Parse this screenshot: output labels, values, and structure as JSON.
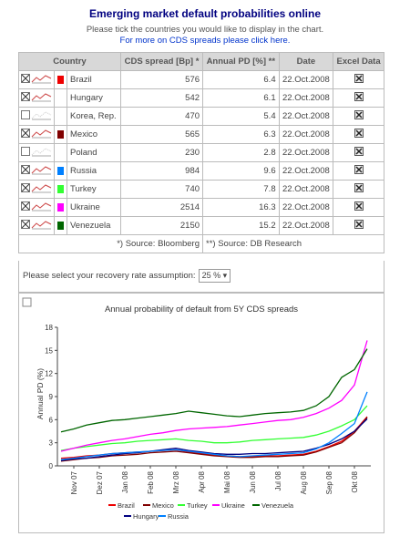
{
  "header": {
    "title": "Emerging market default probabilities online",
    "subtitle": "Please tick the countries you would like to display in the chart.",
    "link": "For more on CDS spreads please click here."
  },
  "table": {
    "columns": [
      "Country",
      "CDS spread [Bp] *",
      "Annual PD [%] **",
      "Date",
      "Excel Data"
    ],
    "rows": [
      {
        "country": "Brazil",
        "checked": true,
        "color": "#ee0000",
        "cds": 576,
        "pd": 6.4,
        "date": "22.Oct.2008"
      },
      {
        "country": "Hungary",
        "checked": true,
        "color": null,
        "cds": 542,
        "pd": 6.1,
        "date": "22.Oct.2008"
      },
      {
        "country": "Korea, Rep.",
        "checked": false,
        "color": null,
        "cds": 470,
        "pd": 5.4,
        "date": "22.Oct.2008"
      },
      {
        "country": "Mexico",
        "checked": true,
        "color": "#800000",
        "cds": 565,
        "pd": 6.3,
        "date": "22.Oct.2008"
      },
      {
        "country": "Poland",
        "checked": false,
        "color": null,
        "cds": 230,
        "pd": 2.8,
        "date": "22.Oct.2008"
      },
      {
        "country": "Russia",
        "checked": true,
        "color": "#0080ff",
        "cds": 984,
        "pd": 9.6,
        "date": "22.Oct.2008"
      },
      {
        "country": "Turkey",
        "checked": true,
        "color": "#33ff33",
        "cds": 740,
        "pd": 7.8,
        "date": "22.Oct.2008"
      },
      {
        "country": "Ukraine",
        "checked": true,
        "color": "#ff00ff",
        "cds": 2514,
        "pd": 16.3,
        "date": "22.Oct.2008"
      },
      {
        "country": "Venezuela",
        "checked": true,
        "color": "#006600",
        "cds": 2150,
        "pd": 15.2,
        "date": "22.Oct.2008"
      }
    ],
    "footnotes": [
      "*) Source: Bloomberg",
      "**) Source: DB Research"
    ]
  },
  "recovery": {
    "label": "Please select your recovery rate assumption:",
    "selected": "25 %"
  },
  "chart_data": {
    "type": "line",
    "title": "Annual probability of default from 5Y CDS spreads",
    "y_label": "Annual PD (%)",
    "categories": [
      null,
      "Nov 07",
      null,
      "Dez 07",
      null,
      "Jan 08",
      null,
      "Feb 08",
      null,
      "Mrz 08",
      null,
      "Apr 08",
      null,
      "Mai 08",
      null,
      "Jun 08",
      null,
      "Jul 08",
      null,
      "Aug 08",
      null,
      "Sep 08",
      null,
      "Okt 08",
      null
    ],
    "ylim": [
      0,
      18
    ],
    "yticks": [
      0,
      3,
      6,
      9,
      12,
      15,
      18
    ],
    "series": [
      {
        "name": "Brazil",
        "color": "#ee0000",
        "values": [
          1.0,
          1.1,
          1.3,
          1.4,
          1.6,
          1.7,
          1.8,
          1.9,
          2.0,
          2.1,
          1.8,
          1.6,
          1.4,
          1.3,
          1.2,
          1.2,
          1.3,
          1.3,
          1.4,
          1.5,
          1.9,
          2.5,
          3.2,
          4.5,
          6.4
        ]
      },
      {
        "name": "Mexico",
        "color": "#800000",
        "values": [
          0.6,
          0.8,
          1.0,
          1.1,
          1.3,
          1.4,
          1.5,
          1.7,
          1.8,
          1.9,
          1.7,
          1.5,
          1.3,
          1.2,
          1.1,
          1.1,
          1.2,
          1.2,
          1.3,
          1.4,
          1.8,
          2.4,
          3.0,
          4.3,
          6.3
        ]
      },
      {
        "name": "Turkey",
        "color": "#33ff33",
        "values": [
          2.0,
          2.3,
          2.5,
          2.7,
          2.9,
          3.0,
          3.2,
          3.3,
          3.4,
          3.5,
          3.3,
          3.2,
          3.0,
          3.0,
          3.1,
          3.3,
          3.4,
          3.5,
          3.6,
          3.7,
          4.0,
          4.5,
          5.2,
          6.0,
          7.8
        ]
      },
      {
        "name": "Ukraine",
        "color": "#ff00ff",
        "values": [
          1.9,
          2.3,
          2.7,
          3.0,
          3.3,
          3.5,
          3.8,
          4.1,
          4.3,
          4.6,
          4.8,
          4.9,
          5.0,
          5.1,
          5.3,
          5.5,
          5.7,
          5.9,
          6.0,
          6.3,
          6.8,
          7.5,
          8.5,
          10.5,
          16.3
        ]
      },
      {
        "name": "Venezuela",
        "color": "#006600",
        "values": [
          4.4,
          4.8,
          5.3,
          5.6,
          5.9,
          6.0,
          6.2,
          6.4,
          6.6,
          6.8,
          7.1,
          6.9,
          6.7,
          6.5,
          6.4,
          6.6,
          6.8,
          6.9,
          7.0,
          7.2,
          7.8,
          9.0,
          11.5,
          12.5,
          15.2
        ]
      },
      {
        "name": "Hungary",
        "color": "#000080",
        "values": [
          0.7,
          0.9,
          1.0,
          1.2,
          1.4,
          1.6,
          1.7,
          1.9,
          2.1,
          2.3,
          2.0,
          1.8,
          1.6,
          1.5,
          1.5,
          1.6,
          1.6,
          1.7,
          1.8,
          1.9,
          2.3,
          2.8,
          3.5,
          4.5,
          6.1
        ]
      },
      {
        "name": "Russia",
        "color": "#0080ff",
        "values": [
          0.8,
          1.0,
          1.2,
          1.4,
          1.6,
          1.7,
          1.8,
          1.9,
          2.0,
          2.1,
          1.9,
          1.7,
          1.5,
          1.3,
          1.2,
          1.3,
          1.4,
          1.5,
          1.6,
          1.7,
          2.2,
          3.0,
          4.2,
          5.5,
          9.6
        ]
      }
    ]
  }
}
